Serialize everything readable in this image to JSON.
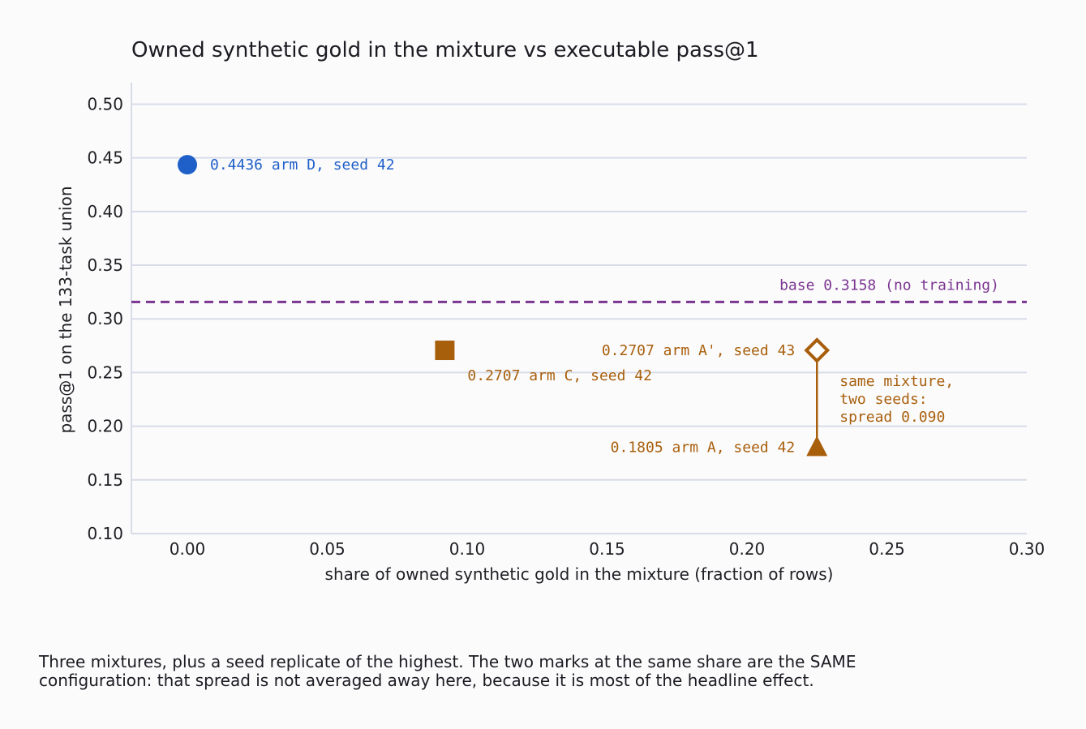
{
  "chart_data": {
    "type": "scatter",
    "title": "Owned synthetic gold in the mixture vs executable pass@1",
    "xlabel": "share of owned synthetic gold in the mixture (fraction of rows)",
    "ylabel": "pass@1 on the 133-task union",
    "xlim": [
      -0.02,
      0.3
    ],
    "ylim": [
      0.1,
      0.52
    ],
    "x_ticks": [
      "0.00",
      "0.05",
      "0.10",
      "0.15",
      "0.20",
      "0.25",
      "0.30"
    ],
    "y_ticks": [
      "0.10",
      "0.15",
      "0.20",
      "0.25",
      "0.30",
      "0.35",
      "0.40",
      "0.45",
      "0.50"
    ],
    "grid": "horizontal",
    "points": [
      {
        "x": 0.0,
        "y": 0.4436,
        "marker": "circle",
        "color": "#1f5fc8",
        "label": "0.4436  arm D, seed 42",
        "label_side": "right"
      },
      {
        "x": 0.092,
        "y": 0.2707,
        "marker": "square",
        "color": "#a85f0c",
        "label": "0.2707  arm C, seed 42",
        "label_side": "below-right"
      },
      {
        "x": 0.225,
        "y": 0.2707,
        "marker": "diamond-open",
        "color": "#a85f0c",
        "label": "0.2707  arm A', seed 43",
        "label_side": "left"
      },
      {
        "x": 0.225,
        "y": 0.1805,
        "marker": "triangle",
        "color": "#a85f0c",
        "label": "0.1805  arm A, seed 42",
        "label_side": "left"
      }
    ],
    "baseline": {
      "y": 0.3158,
      "label": "base 0.3158 (no training)",
      "color": "#7a3590",
      "style": "dashed"
    },
    "spread_annotation": {
      "x": 0.225,
      "y_from": 0.2707,
      "y_to": 0.1805,
      "color": "#a85f0c",
      "lines": [
        "same mixture,",
        "two seeds:",
        "spread 0.090"
      ]
    }
  },
  "caption": {
    "line1": "Three mixtures, plus a seed replicate of the highest. The two marks at the same share are the SAME",
    "line2": "configuration: that spread is not averaged away here, because it is most of the headline effect."
  },
  "colors": {
    "grid": "#d8dce8",
    "axis": "#d8dce8",
    "text": "#1f1f24"
  }
}
